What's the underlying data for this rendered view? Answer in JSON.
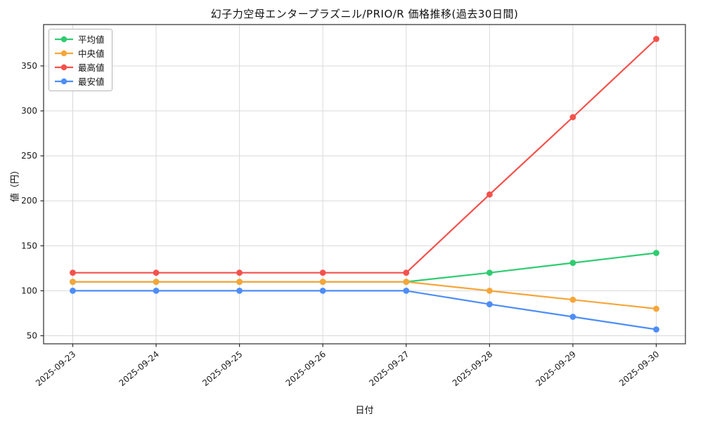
{
  "chart_data": {
    "type": "line",
    "title": "幻子力空母エンタープラズニル/PRIO/R 価格推移(過去30日間)",
    "xlabel": "日付",
    "ylabel": "値（円）",
    "x": [
      "2025-09-23",
      "2025-09-24",
      "2025-09-25",
      "2025-09-26",
      "2025-09-27",
      "2025-09-28",
      "2025-09-29",
      "2025-09-30"
    ],
    "series": [
      {
        "id": "average",
        "name": "平均値",
        "color": "#2ecc71",
        "values": [
          110,
          110,
          110,
          110,
          110,
          120,
          131,
          142
        ]
      },
      {
        "id": "median",
        "name": "中央値",
        "color": "#f5a63a",
        "values": [
          110,
          110,
          110,
          110,
          110,
          100,
          90,
          80
        ]
      },
      {
        "id": "highest",
        "name": "最高値",
        "color": "#f4514c",
        "values": [
          120,
          120,
          120,
          120,
          120,
          207,
          293,
          380
        ]
      },
      {
        "id": "lowest",
        "name": "最安値",
        "color": "#4d8df6",
        "values": [
          100,
          100,
          100,
          100,
          100,
          85,
          71,
          57
        ]
      }
    ],
    "yticks": [
      50,
      100,
      150,
      200,
      250,
      300,
      350
    ],
    "ylim": [
      41,
      396
    ],
    "grid": true,
    "legend_position": "upper left",
    "colors": {
      "grid": "#d9d9d9",
      "spine": "#2b2b2b",
      "tick_label": "#1a1a1a"
    }
  }
}
